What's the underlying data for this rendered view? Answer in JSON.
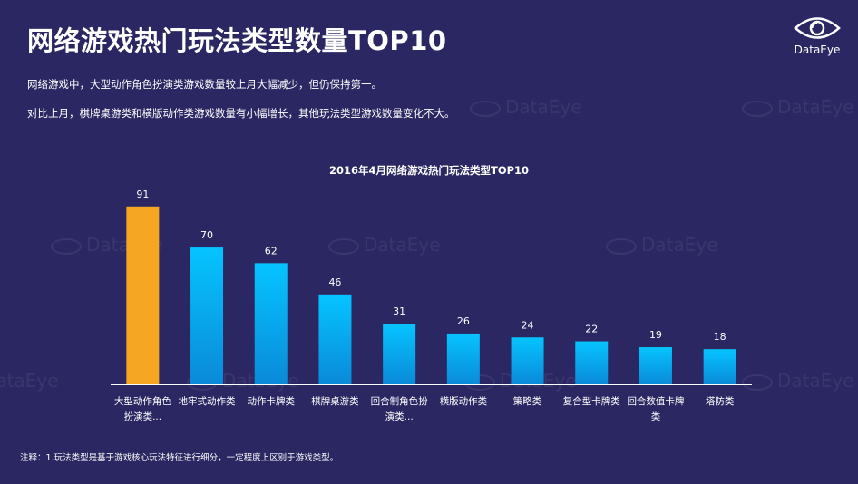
{
  "header": {
    "title": "网络游戏热门玩法类型数量TOP10",
    "logo_text": "DataEye"
  },
  "summary": {
    "line1": "网络游戏中，大型动作角色扮演类游戏数量较上月大幅减少，但仍保持第一。",
    "line2": "对比上月，棋牌桌游类和横版动作类游戏数量有小幅增长，其他玩法类型游戏数量变化不大。"
  },
  "watermark_text": "DataEye",
  "chart_data": {
    "type": "bar",
    "title": "2016年4月网络游戏热门玩法类型TOP10",
    "categories": [
      [
        "大型动作角色",
        "扮演类..."
      ],
      [
        "地牢式动作类"
      ],
      [
        "动作卡牌类"
      ],
      [
        "棋牌桌游类"
      ],
      [
        "回合制角色扮",
        "演类..."
      ],
      [
        "横版动作类"
      ],
      [
        "策略类"
      ],
      [
        "复合型卡牌类"
      ],
      [
        "回合数值卡牌",
        "类"
      ],
      [
        "塔防类"
      ]
    ],
    "values": [
      91,
      70,
      62,
      46,
      31,
      26,
      24,
      22,
      19,
      18
    ],
    "highlight_index": 0,
    "ylim": [
      0,
      100
    ],
    "grid": false,
    "colors": {
      "highlight": "#f5a623",
      "bar_top": "#06c4ff",
      "bar_bottom": "#0a8ad8",
      "axis": "#ffffff",
      "text": "#ffffff"
    }
  },
  "footnote": "注释：1.玩法类型是基于游戏核心玩法特征进行细分，一定程度上区别于游戏类型。"
}
